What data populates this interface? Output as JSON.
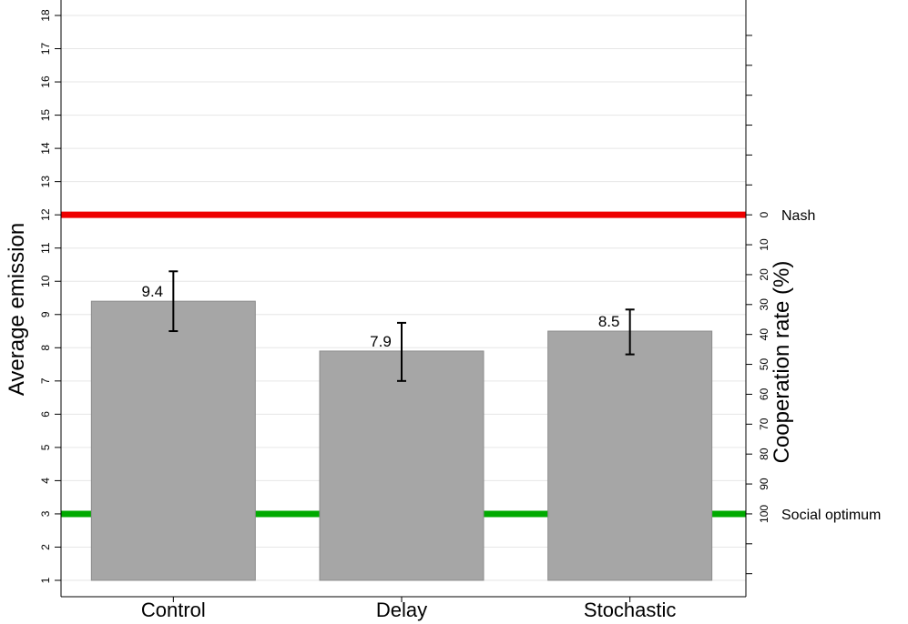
{
  "chart_data": {
    "type": "bar",
    "categories": [
      "Control",
      "Delay",
      "Stochastic"
    ],
    "values": [
      9.4,
      7.9,
      8.5
    ],
    "value_labels": [
      "9.4",
      "7.9",
      "8.5"
    ],
    "error_bars": [
      {
        "low": 8.5,
        "high": 10.3
      },
      {
        "low": 7.0,
        "high": 8.75
      },
      {
        "low": 7.8,
        "high": 9.15
      }
    ],
    "bar_base": 1,
    "ylabel": "Average emission",
    "ylim": [
      1,
      18
    ],
    "yticks": [
      "1",
      "2",
      "3",
      "4",
      "5",
      "6",
      "7",
      "8",
      "9",
      "10",
      "11",
      "12",
      "13",
      "14",
      "15",
      "16",
      "17",
      "18"
    ],
    "y2label": "Cooperation rate (%)",
    "y2ticks": [
      "0",
      "10",
      "20",
      "30",
      "40",
      "50",
      "60",
      "70",
      "80",
      "90",
      "100"
    ],
    "reference_lines": [
      {
        "label": "Nash",
        "value": 12,
        "color": "#ee0000"
      },
      {
        "label": "Social optimum",
        "value": 3,
        "color": "#00aa00"
      }
    ],
    "bar_color": "#a6a6a6",
    "grid": true
  }
}
